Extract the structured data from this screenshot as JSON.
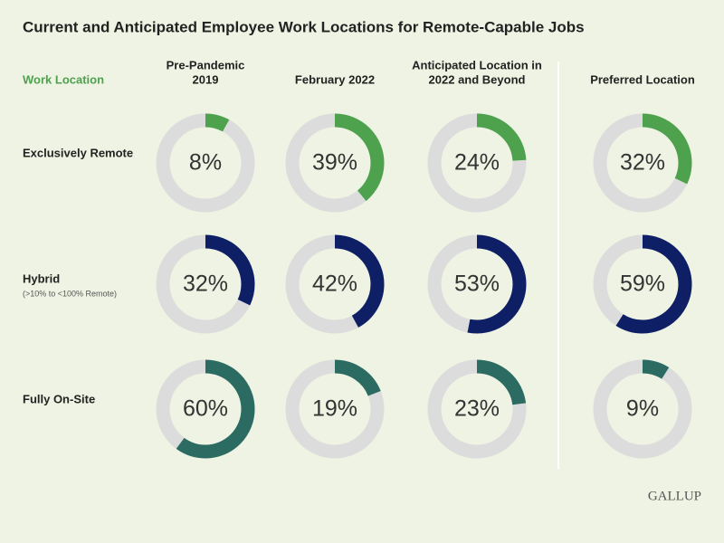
{
  "chart_data": {
    "type": "donut",
    "title": "Current and Anticipated Employee Work Locations for Remote-Capable Jobs",
    "row_header": "Work Location",
    "columns": [
      [
        "Pre-Pandemic",
        "2019"
      ],
      [
        "February 2022"
      ],
      [
        "Anticipated Location in",
        "2022 and Beyond"
      ],
      [
        "Preferred Location"
      ]
    ],
    "series": [
      {
        "name": "Exclusively Remote",
        "color": "#4ea24e",
        "values": [
          8,
          39,
          24,
          32
        ],
        "value_labels": [
          "8%",
          "39%",
          "24%",
          "32%"
        ]
      },
      {
        "name": "Hybrid",
        "description": "(>10% to <100% Remote)",
        "color": "#0e1f66",
        "values": [
          32,
          42,
          53,
          59
        ],
        "value_labels": [
          "32%",
          "42%",
          "53%",
          "59%"
        ]
      },
      {
        "name": "Fully On-Site",
        "color": "#2b6b62",
        "values": [
          60,
          19,
          23,
          9
        ],
        "value_labels": [
          "60%",
          "19%",
          "23%",
          "9%"
        ]
      }
    ],
    "source": "GALLUP"
  }
}
